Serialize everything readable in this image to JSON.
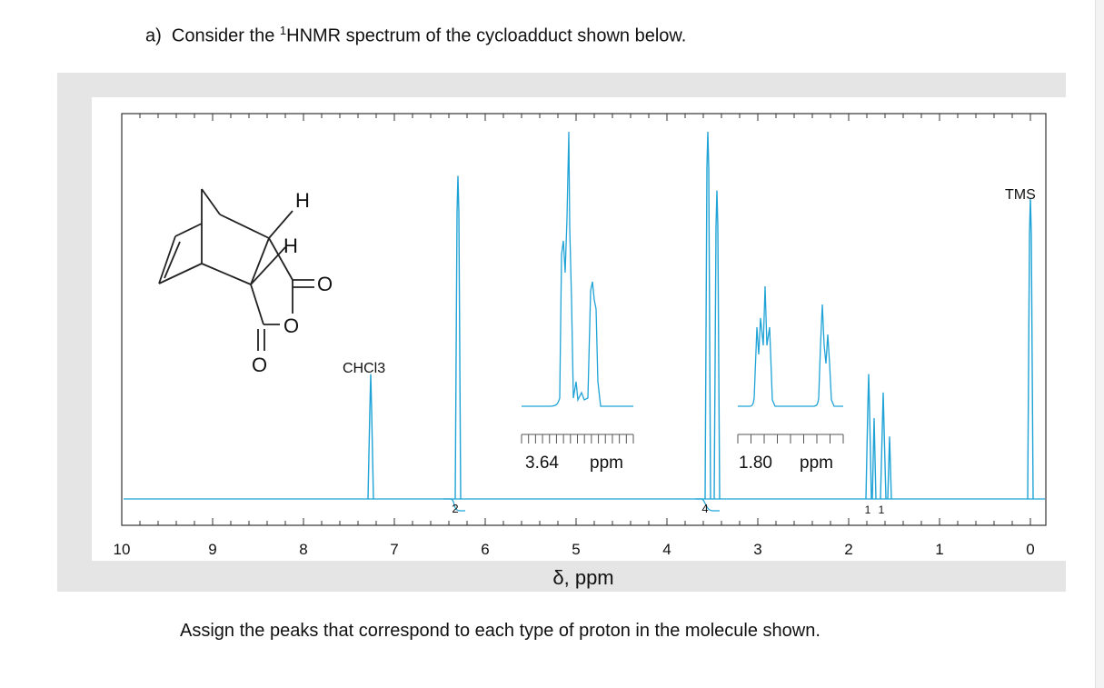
{
  "question": {
    "prefix": "a)",
    "text_before_sup": "Consider the ",
    "sup": "1",
    "text_after_sup": "HNMR spectrum of the cycloadduct shown below."
  },
  "instructions": "Assign the peaks that correspond to each type of proton in the molecule shown.",
  "chart_data": {
    "type": "line",
    "xlabel": "δ, ppm",
    "x_ticks": [
      "10",
      "9",
      "8",
      "7",
      "6",
      "5",
      "4",
      "3",
      "2",
      "1",
      "0"
    ],
    "xlim": [
      10,
      0
    ],
    "axis_reversed": true,
    "peaks": [
      {
        "ppm": 7.26,
        "height": 0.34,
        "label": "CHCl3"
      },
      {
        "ppm": 6.3,
        "height": 0.88,
        "integration": "2"
      },
      {
        "ppm": 3.55,
        "height": 1.0,
        "integration": "4"
      },
      {
        "ppm": 3.45,
        "height": 0.84
      },
      {
        "ppm": 1.78,
        "height": 0.34,
        "integration": "1"
      },
      {
        "ppm": 1.62,
        "height": 0.29,
        "integration": "1"
      },
      {
        "ppm": 0.0,
        "height": 0.82,
        "label": "TMS"
      }
    ],
    "integrations": [
      "2",
      "4",
      "1",
      "1"
    ],
    "insets": [
      {
        "label": "3.64",
        "unit": "ppm"
      },
      {
        "label": "1.80",
        "unit": "ppm"
      }
    ],
    "annotations": {
      "solvent": "CHCl3",
      "reference": "TMS"
    },
    "molecule_labels": [
      "H",
      "H",
      "O",
      "O",
      "O"
    ],
    "colors": {
      "spectrum": "#1fa3d6",
      "axis": "#333333"
    }
  }
}
